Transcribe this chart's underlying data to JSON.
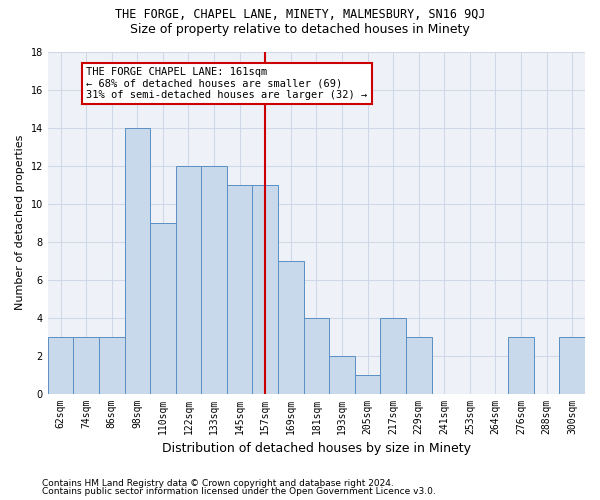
{
  "title": "THE FORGE, CHAPEL LANE, MINETY, MALMESBURY, SN16 9QJ",
  "subtitle": "Size of property relative to detached houses in Minety",
  "xlabel": "Distribution of detached houses by size in Minety",
  "ylabel": "Number of detached properties",
  "categories": [
    "62sqm",
    "74sqm",
    "86sqm",
    "98sqm",
    "110sqm",
    "122sqm",
    "133sqm",
    "145sqm",
    "157sqm",
    "169sqm",
    "181sqm",
    "193sqm",
    "205sqm",
    "217sqm",
    "229sqm",
    "241sqm",
    "253sqm",
    "264sqm",
    "276sqm",
    "288sqm",
    "300sqm"
  ],
  "values": [
    3,
    3,
    3,
    14,
    9,
    12,
    12,
    11,
    11,
    7,
    4,
    2,
    1,
    4,
    3,
    0,
    0,
    0,
    3,
    0,
    3
  ],
  "bar_color": "#c9d9ec",
  "bar_edge_color": "#5a8fc2",
  "grid_color": "#d0d8e8",
  "plot_bg_color": "#eef2f8",
  "figure_bg_color": "#ffffff",
  "vline_bar_index": 8,
  "vline_color": "#cc0000",
  "annotation_text": "THE FORGE CHAPEL LANE: 161sqm\n← 68% of detached houses are smaller (69)\n31% of semi-detached houses are larger (32) →",
  "annotation_box_color": "#ffffff",
  "annotation_box_edge": "#cc0000",
  "ylim": [
    0,
    18
  ],
  "yticks": [
    0,
    2,
    4,
    6,
    8,
    10,
    12,
    14,
    16,
    18
  ],
  "footer1": "Contains HM Land Registry data © Crown copyright and database right 2024.",
  "footer2": "Contains public sector information licensed under the Open Government Licence v3.0.",
  "title_fontsize": 8.5,
  "subtitle_fontsize": 9,
  "ylabel_fontsize": 8,
  "xlabel_fontsize": 9,
  "tick_fontsize": 7,
  "annotation_fontsize": 7.5,
  "footer_fontsize": 6.5
}
